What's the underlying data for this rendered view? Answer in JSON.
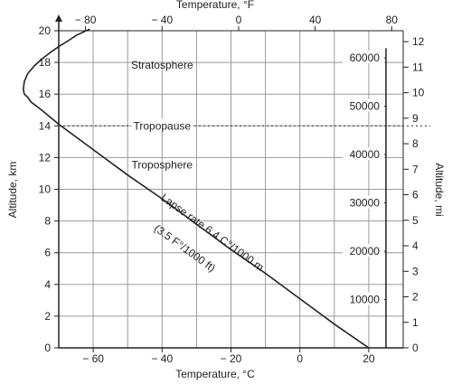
{
  "chart_data": {
    "type": "line",
    "title": "",
    "x_bottom": {
      "label": "Temperature, °C",
      "range": [
        -70,
        30
      ],
      "ticks": [
        -60,
        -40,
        -20,
        0,
        20
      ]
    },
    "x_top": {
      "label": "Temperature, °F",
      "ticks": [
        -80,
        -40,
        0,
        40,
        80
      ]
    },
    "y_left": {
      "label": "Altitude, km",
      "range": [
        0,
        20
      ],
      "ticks": [
        0,
        2,
        4,
        6,
        8,
        10,
        12,
        14,
        16,
        18,
        20
      ]
    },
    "y_right": {
      "label": "Altitude, mi",
      "ticks": [
        0,
        1,
        2,
        3,
        4,
        5,
        6,
        7,
        8,
        9,
        10,
        11,
        12
      ]
    },
    "feet_scale": {
      "ticks": [
        10000,
        20000,
        30000,
        40000,
        50000,
        60000
      ]
    },
    "grid": true,
    "series": [
      {
        "name": "",
        "x": [
          20,
          10,
          0,
          -10,
          -20,
          -30,
          -40,
          -50,
          -60,
          -70,
          -75,
          -78,
          -79,
          -80,
          -80.3,
          -80,
          -79,
          -77,
          -75,
          -72,
          -70,
          -67,
          -65,
          -61
        ],
        "y": [
          0,
          1.5,
          3.1,
          4.7,
          6.2,
          7.8,
          9.4,
          10.9,
          12.5,
          14.1,
          15.0,
          15.5,
          15.8,
          16.0,
          16.3,
          16.8,
          17.3,
          17.8,
          18.2,
          18.7,
          19.0,
          19.4,
          19.7,
          20.1
        ]
      }
    ],
    "annotations": {
      "stratosphere": "Stratosphere",
      "tropopause": "Tropopause",
      "troposphere": "Troposphere",
      "lapse_rate": "Lapse rate 6.4 C°/1000 m",
      "lapse_rate_imperial": "(3.5 F°/1000 ft)"
    },
    "tropopause_altitude_km": 14
  }
}
